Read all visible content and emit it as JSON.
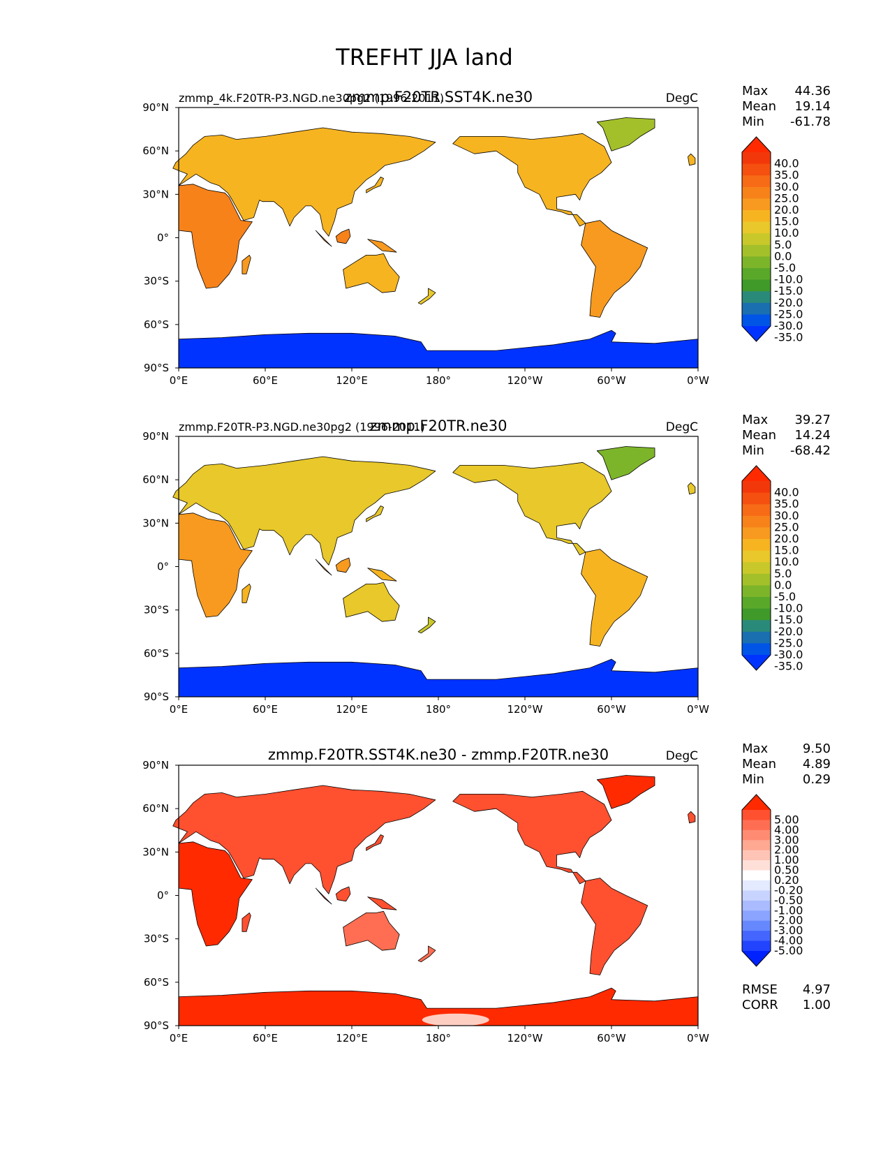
{
  "title": "TREFHT JJA land",
  "colors": {
    "land_ocean_bg": "#ffffff",
    "coast": "#000000",
    "temp_scale": [
      "#0033ff",
      "#0055e6",
      "#1a6fb0",
      "#2a8a7a",
      "#3f9a2a",
      "#5aa82a",
      "#7db52a",
      "#a3c02a",
      "#c9c82a",
      "#e8c82a",
      "#f7b421",
      "#f79a1f",
      "#f7821a",
      "#f76a16",
      "#f55010",
      "#f2380b",
      "#ff2a00"
    ],
    "diff_scale": [
      "#0022ff",
      "#2244ff",
      "#4466ff",
      "#6688ff",
      "#8aa4ff",
      "#aabbff",
      "#c8d4ff",
      "#e4eaff",
      "#ffffff",
      "#ffe0d8",
      "#ffc4b6",
      "#ffa892",
      "#ff8c72",
      "#ff6e52",
      "#ff5030",
      "#ff2a00"
    ]
  },
  "panels": [
    {
      "id": "sst4k",
      "left_title": "zmmp_4k.F20TR-P3.NGD.ne30pg2 (1996-2011)",
      "center_title": "zmmp.F20TR.SST4K.ne30",
      "right_title": "DegC",
      "stats": [
        {
          "label": "Max",
          "value": "44.36"
        },
        {
          "label": "Mean",
          "value": "19.14"
        },
        {
          "label": "Min",
          "value": "-61.78"
        }
      ],
      "colorbar": {
        "type": "temperature",
        "ticks": [
          "40.0",
          "35.0",
          "30.0",
          "25.0",
          "20.0",
          "15.0",
          "10.0",
          "5.0",
          "0.0",
          "-5.0",
          "-10.0",
          "-15.0",
          "-20.0",
          "-25.0",
          "-30.0",
          "-35.0"
        ]
      },
      "xticks": [
        "0°E",
        "60°E",
        "120°E",
        "180°",
        "120°W",
        "60°W",
        "0°W"
      ],
      "yticks": [
        "90°N",
        "60°N",
        "30°N",
        "0°",
        "30°S",
        "60°S",
        "90°S"
      ]
    },
    {
      "id": "control",
      "left_title": "zmmp.F20TR-P3.NGD.ne30pg2 (1996-2011)",
      "center_title": "zmmp.F20TR.ne30",
      "right_title": "DegC",
      "stats": [
        {
          "label": "Max",
          "value": "39.27"
        },
        {
          "label": "Mean",
          "value": "14.24"
        },
        {
          "label": "Min",
          "value": "-68.42"
        }
      ],
      "colorbar": {
        "type": "temperature",
        "ticks": [
          "40.0",
          "35.0",
          "30.0",
          "25.0",
          "20.0",
          "15.0",
          "10.0",
          "5.0",
          "0.0",
          "-5.0",
          "-10.0",
          "-15.0",
          "-20.0",
          "-25.0",
          "-30.0",
          "-35.0"
        ]
      },
      "xticks": [
        "0°E",
        "60°E",
        "120°E",
        "180°",
        "120°W",
        "60°W",
        "0°W"
      ],
      "yticks": [
        "90°N",
        "60°N",
        "30°N",
        "0°",
        "30°S",
        "60°S",
        "90°S"
      ]
    },
    {
      "id": "diff",
      "left_title": "",
      "center_title": "zmmp.F20TR.SST4K.ne30 - zmmp.F20TR.ne30",
      "right_title": "DegC",
      "stats": [
        {
          "label": "Max",
          "value": "9.50"
        },
        {
          "label": "Mean",
          "value": "4.89"
        },
        {
          "label": "Min",
          "value": "0.29"
        }
      ],
      "colorbar": {
        "type": "difference",
        "ticks": [
          "5.00",
          "4.00",
          "3.00",
          "2.00",
          "1.00",
          "0.50",
          "0.20",
          "-0.20",
          "-0.50",
          "-1.00",
          "-2.00",
          "-3.00",
          "-4.00",
          "-5.00"
        ]
      },
      "xticks": [
        "0°E",
        "60°E",
        "120°E",
        "180°",
        "120°W",
        "60°W",
        "0°W"
      ],
      "yticks": [
        "90°N",
        "60°N",
        "30°N",
        "0°",
        "30°S",
        "60°S",
        "90°S"
      ],
      "metrics": [
        {
          "label": "RMSE",
          "value": "4.97"
        },
        {
          "label": "CORR",
          "value": "1.00"
        }
      ]
    }
  ]
}
